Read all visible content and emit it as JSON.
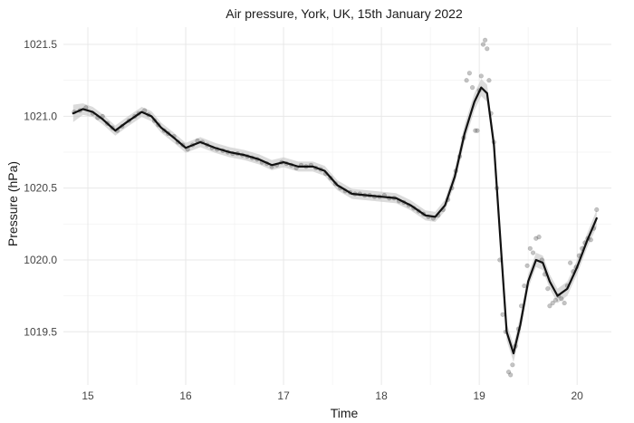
{
  "chart_data": {
    "type": "scatter",
    "title": "Air pressure, York, UK, 15th January 2022",
    "xlabel": "Time",
    "ylabel": "Pressure (hPa)",
    "xlim": [
      14.75,
      20.35
    ],
    "ylim": [
      1019.13,
      1021.62
    ],
    "x_ticks": [
      15,
      16,
      17,
      18,
      19,
      20
    ],
    "x_tick_labels": [
      "15",
      "16",
      "17",
      "18",
      "19",
      "20"
    ],
    "y_ticks": [
      1019.5,
      1020.0,
      1020.5,
      1021.0,
      1021.5
    ],
    "y_tick_labels": [
      "1019.5",
      "1020.0",
      "1020.5",
      "1021.0",
      "1021.5"
    ],
    "grid": true,
    "smooth_line": [
      {
        "x": 14.85,
        "y": 1021.02
      },
      {
        "x": 14.95,
        "y": 1021.05
      },
      {
        "x": 15.05,
        "y": 1021.03
      },
      {
        "x": 15.15,
        "y": 1020.98
      },
      {
        "x": 15.28,
        "y": 1020.9
      },
      {
        "x": 15.4,
        "y": 1020.96
      },
      {
        "x": 15.55,
        "y": 1021.03
      },
      {
        "x": 15.65,
        "y": 1021.0
      },
      {
        "x": 15.75,
        "y": 1020.92
      },
      {
        "x": 15.88,
        "y": 1020.85
      },
      {
        "x": 16.0,
        "y": 1020.78
      },
      {
        "x": 16.15,
        "y": 1020.82
      },
      {
        "x": 16.3,
        "y": 1020.78
      },
      {
        "x": 16.45,
        "y": 1020.75
      },
      {
        "x": 16.6,
        "y": 1020.73
      },
      {
        "x": 16.75,
        "y": 1020.7
      },
      {
        "x": 16.88,
        "y": 1020.66
      },
      {
        "x": 17.0,
        "y": 1020.68
      },
      {
        "x": 17.15,
        "y": 1020.65
      },
      {
        "x": 17.3,
        "y": 1020.65
      },
      {
        "x": 17.42,
        "y": 1020.62
      },
      {
        "x": 17.55,
        "y": 1020.52
      },
      {
        "x": 17.7,
        "y": 1020.46
      },
      {
        "x": 17.85,
        "y": 1020.45
      },
      {
        "x": 18.0,
        "y": 1020.44
      },
      {
        "x": 18.15,
        "y": 1020.43
      },
      {
        "x": 18.3,
        "y": 1020.38
      },
      {
        "x": 18.45,
        "y": 1020.31
      },
      {
        "x": 18.55,
        "y": 1020.3
      },
      {
        "x": 18.65,
        "y": 1020.38
      },
      {
        "x": 18.75,
        "y": 1020.58
      },
      {
        "x": 18.85,
        "y": 1020.88
      },
      {
        "x": 18.95,
        "y": 1021.1
      },
      {
        "x": 19.02,
        "y": 1021.2
      },
      {
        "x": 19.08,
        "y": 1021.16
      },
      {
        "x": 19.15,
        "y": 1020.8
      },
      {
        "x": 19.22,
        "y": 1020.1
      },
      {
        "x": 19.28,
        "y": 1019.5
      },
      {
        "x": 19.35,
        "y": 1019.35
      },
      {
        "x": 19.42,
        "y": 1019.55
      },
      {
        "x": 19.5,
        "y": 1019.85
      },
      {
        "x": 19.58,
        "y": 1020.0
      },
      {
        "x": 19.65,
        "y": 1019.98
      },
      {
        "x": 19.72,
        "y": 1019.85
      },
      {
        "x": 19.8,
        "y": 1019.75
      },
      {
        "x": 19.9,
        "y": 1019.8
      },
      {
        "x": 20.0,
        "y": 1019.95
      },
      {
        "x": 20.1,
        "y": 1020.13
      },
      {
        "x": 20.2,
        "y": 1020.29
      }
    ],
    "band_halfwidth": [
      0.06,
      0.04,
      0.035,
      0.035,
      0.035,
      0.035,
      0.035,
      0.035,
      0.035,
      0.035,
      0.035,
      0.035,
      0.035,
      0.035,
      0.035,
      0.035,
      0.035,
      0.035,
      0.035,
      0.035,
      0.035,
      0.035,
      0.035,
      0.035,
      0.035,
      0.035,
      0.035,
      0.035,
      0.035,
      0.04,
      0.05,
      0.06,
      0.06,
      0.06,
      0.06,
      0.06,
      0.06,
      0.06,
      0.06,
      0.06,
      0.05,
      0.05,
      0.05,
      0.05,
      0.05,
      0.05,
      0.05,
      0.05,
      0.06
    ],
    "points": [
      [
        14.86,
        1021.03
      ],
      [
        14.92,
        1021.04
      ],
      [
        14.98,
        1021.06
      ],
      [
        15.05,
        1021.02
      ],
      [
        15.1,
        1020.99
      ],
      [
        15.15,
        1021.0
      ],
      [
        15.2,
        1020.95
      ],
      [
        15.25,
        1020.92
      ],
      [
        15.3,
        1020.9
      ],
      [
        15.35,
        1020.93
      ],
      [
        15.42,
        1020.97
      ],
      [
        15.48,
        1021.0
      ],
      [
        15.52,
        1021.02
      ],
      [
        15.58,
        1021.04
      ],
      [
        15.62,
        1021.01
      ],
      [
        15.68,
        1020.97
      ],
      [
        15.72,
        1020.94
      ],
      [
        15.78,
        1020.9
      ],
      [
        15.82,
        1020.88
      ],
      [
        15.88,
        1020.86
      ],
      [
        15.92,
        1020.82
      ],
      [
        15.97,
        1020.8
      ],
      [
        16.02,
        1020.77
      ],
      [
        16.07,
        1020.8
      ],
      [
        16.12,
        1020.83
      ],
      [
        16.17,
        1020.82
      ],
      [
        16.22,
        1020.8
      ],
      [
        16.27,
        1020.78
      ],
      [
        16.32,
        1020.77
      ],
      [
        16.38,
        1020.76
      ],
      [
        16.43,
        1020.75
      ],
      [
        16.48,
        1020.74
      ],
      [
        16.53,
        1020.74
      ],
      [
        16.58,
        1020.73
      ],
      [
        16.63,
        1020.72
      ],
      [
        16.68,
        1020.71
      ],
      [
        16.73,
        1020.7
      ],
      [
        16.78,
        1020.68
      ],
      [
        16.83,
        1020.67
      ],
      [
        16.88,
        1020.65
      ],
      [
        16.93,
        1020.66
      ],
      [
        16.98,
        1020.68
      ],
      [
        17.03,
        1020.67
      ],
      [
        17.08,
        1020.66
      ],
      [
        17.13,
        1020.64
      ],
      [
        17.18,
        1020.66
      ],
      [
        17.23,
        1020.65
      ],
      [
        17.28,
        1020.66
      ],
      [
        17.33,
        1020.64
      ],
      [
        17.38,
        1020.63
      ],
      [
        17.43,
        1020.6
      ],
      [
        17.48,
        1020.57
      ],
      [
        17.53,
        1020.53
      ],
      [
        17.58,
        1020.5
      ],
      [
        17.63,
        1020.48
      ],
      [
        17.68,
        1020.47
      ],
      [
        17.73,
        1020.46
      ],
      [
        17.78,
        1020.46
      ],
      [
        17.83,
        1020.45
      ],
      [
        17.88,
        1020.45
      ],
      [
        17.93,
        1020.44
      ],
      [
        17.98,
        1020.44
      ],
      [
        18.03,
        1020.45
      ],
      [
        18.08,
        1020.43
      ],
      [
        18.13,
        1020.43
      ],
      [
        18.18,
        1020.41
      ],
      [
        18.23,
        1020.4
      ],
      [
        18.28,
        1020.38
      ],
      [
        18.33,
        1020.36
      ],
      [
        18.38,
        1020.34
      ],
      [
        18.43,
        1020.32
      ],
      [
        18.48,
        1020.3
      ],
      [
        18.53,
        1020.29
      ],
      [
        18.58,
        1020.31
      ],
      [
        18.63,
        1020.35
      ],
      [
        18.68,
        1020.42
      ],
      [
        18.72,
        1020.5
      ],
      [
        18.76,
        1020.62
      ],
      [
        18.8,
        1020.72
      ],
      [
        18.84,
        1020.85
      ],
      [
        18.87,
        1021.25
      ],
      [
        18.9,
        1021.3
      ],
      [
        18.93,
        1021.2
      ],
      [
        18.96,
        1020.9
      ],
      [
        18.98,
        1020.9
      ],
      [
        19.0,
        1021.18
      ],
      [
        19.02,
        1021.28
      ],
      [
        19.04,
        1021.5
      ],
      [
        19.06,
        1021.53
      ],
      [
        19.08,
        1021.47
      ],
      [
        19.1,
        1021.25
      ],
      [
        19.12,
        1021.02
      ],
      [
        19.15,
        1020.82
      ],
      [
        19.18,
        1020.5
      ],
      [
        19.21,
        1020.0
      ],
      [
        19.24,
        1019.62
      ],
      [
        19.27,
        1019.5
      ],
      [
        19.3,
        1019.22
      ],
      [
        19.32,
        1019.2
      ],
      [
        19.34,
        1019.27
      ],
      [
        19.37,
        1019.4
      ],
      [
        19.4,
        1019.52
      ],
      [
        19.43,
        1019.68
      ],
      [
        19.46,
        1019.82
      ],
      [
        19.49,
        1019.96
      ],
      [
        19.52,
        1020.08
      ],
      [
        19.55,
        1020.05
      ],
      [
        19.58,
        1020.15
      ],
      [
        19.61,
        1020.16
      ],
      [
        19.64,
        1020.0
      ],
      [
        19.67,
        1019.9
      ],
      [
        19.7,
        1019.8
      ],
      [
        19.72,
        1019.68
      ],
      [
        19.75,
        1019.7
      ],
      [
        19.78,
        1019.72
      ],
      [
        19.81,
        1019.75
      ],
      [
        19.84,
        1019.73
      ],
      [
        19.87,
        1019.7
      ],
      [
        19.9,
        1019.82
      ],
      [
        19.93,
        1019.98
      ],
      [
        19.96,
        1019.92
      ],
      [
        19.99,
        1019.95
      ],
      [
        20.02,
        1020.03
      ],
      [
        20.05,
        1020.08
      ],
      [
        20.08,
        1020.12
      ],
      [
        20.11,
        1020.15
      ],
      [
        20.14,
        1020.14
      ],
      [
        20.17,
        1020.22
      ],
      [
        20.2,
        1020.35
      ]
    ]
  }
}
